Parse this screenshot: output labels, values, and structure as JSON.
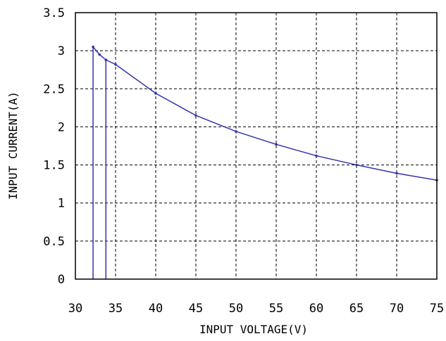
{
  "chart_data": {
    "type": "line",
    "title": "",
    "xlabel": "INPUT VOLTAGE(V)",
    "ylabel": "INPUT CURRENT(A)",
    "xlim": [
      30,
      75
    ],
    "ylim": [
      0,
      3.5
    ],
    "xticks": [
      30,
      35,
      40,
      45,
      50,
      55,
      60,
      65,
      70,
      75
    ],
    "yticks": [
      0,
      0.5,
      1,
      1.5,
      2,
      2.5,
      3,
      3.5
    ],
    "xtick_labels": [
      "30",
      "35",
      "40",
      "45",
      "50",
      "55",
      "60",
      "65",
      "70",
      "75"
    ],
    "ytick_labels": [
      "0",
      "0.5",
      "1",
      "1.5",
      "2",
      "2.5",
      "3",
      "3.5"
    ],
    "grid": true,
    "legend": "none",
    "line_color": "#3333aa",
    "series": [
      {
        "name": "",
        "x": [
          32.2,
          32.2,
          33.0,
          33.8,
          35,
          40,
          45,
          50,
          55,
          60,
          65,
          70,
          75
        ],
        "y": [
          0,
          3.05,
          2.95,
          2.88,
          2.82,
          2.44,
          2.15,
          1.94,
          1.77,
          1.62,
          1.5,
          1.39,
          1.3
        ]
      },
      {
        "name": "",
        "x": [
          33.8,
          33.8
        ],
        "y": [
          0,
          2.88
        ]
      }
    ]
  }
}
